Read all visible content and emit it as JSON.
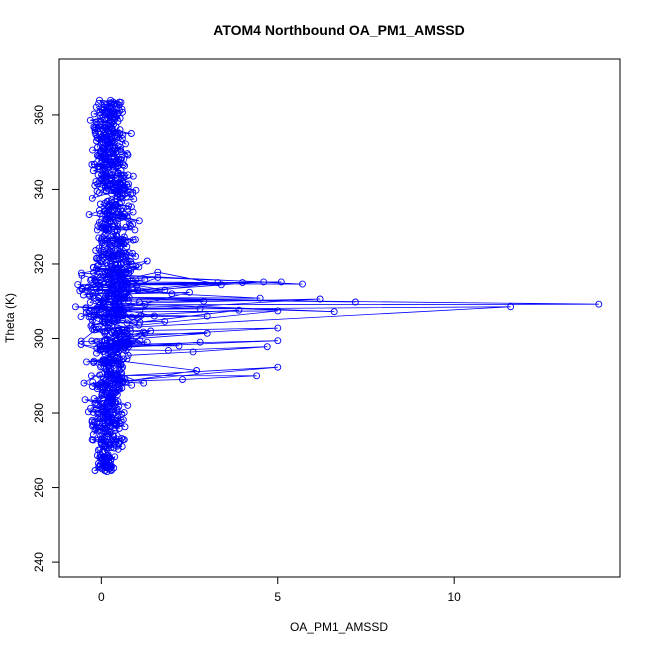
{
  "chart_data": {
    "type": "scatter",
    "title": "ATOM4 Northbound OA_PM1_AMSSD",
    "xlabel": "OA_PM1_AMSSD",
    "ylabel": "Theta (K)",
    "xlim": [
      -1.2,
      14.7
    ],
    "ylim": [
      236,
      375
    ],
    "xticks": [
      0,
      5,
      10
    ],
    "yticks": [
      240,
      260,
      280,
      300,
      320,
      340,
      360
    ],
    "connected": true,
    "marker": "open-circle",
    "color": "#0000ff",
    "grid": false,
    "legend": "none",
    "outliers": [
      [
        14.1,
        309.2
      ],
      [
        11.6,
        308.5
      ],
      [
        7.2,
        309.8
      ],
      [
        6.6,
        307.2
      ],
      [
        6.2,
        310.6
      ],
      [
        5.7,
        314.6
      ],
      [
        5.1,
        315.2
      ],
      [
        5.0,
        307.4
      ],
      [
        5.0,
        302.8
      ],
      [
        5.0,
        299.4
      ],
      [
        5.0,
        292.3
      ],
      [
        4.7,
        297.8
      ],
      [
        4.6,
        315.2
      ],
      [
        4.5,
        310.8
      ],
      [
        4.4,
        290.0
      ],
      [
        4.0,
        315.0
      ],
      [
        3.9,
        307.6
      ],
      [
        3.4,
        314.4
      ],
      [
        3.3,
        315.0
      ],
      [
        3.0,
        306.0
      ],
      [
        3.0,
        301.4
      ],
      [
        2.9,
        310.0
      ],
      [
        2.8,
        299.0
      ],
      [
        2.8,
        308.0
      ],
      [
        2.7,
        291.4
      ],
      [
        2.6,
        296.4
      ],
      [
        2.5,
        312.4
      ],
      [
        2.3,
        289.0
      ],
      [
        2.2,
        298.0
      ],
      [
        2.0,
        312.0
      ],
      [
        1.9,
        296.8
      ],
      [
        1.8,
        313.0
      ],
      [
        1.8,
        304.6
      ],
      [
        1.6,
        317.8
      ],
      [
        1.6,
        316.4
      ],
      [
        1.5,
        306.0
      ],
      [
        1.4,
        302.0
      ],
      [
        1.3,
        299.0
      ],
      [
        1.3,
        320.8
      ],
      [
        1.2,
        288.0
      ]
    ],
    "dense_core": [
      {
        "theta": [
          264,
          270
        ],
        "x_center": 0.1,
        "x_spread": 0.25
      },
      {
        "theta": [
          270,
          280
        ],
        "x_center": 0.2,
        "x_spread": 0.45
      },
      {
        "theta": [
          280,
          295
        ],
        "x_center": 0.2,
        "x_spread": 0.55
      },
      {
        "theta": [
          295,
          320
        ],
        "x_center": 0.3,
        "x_spread": 0.8
      },
      {
        "theta": [
          320,
          345
        ],
        "x_center": 0.3,
        "x_spread": 0.6
      },
      {
        "theta": [
          345,
          364
        ],
        "x_center": 0.2,
        "x_spread": 0.5
      }
    ]
  }
}
